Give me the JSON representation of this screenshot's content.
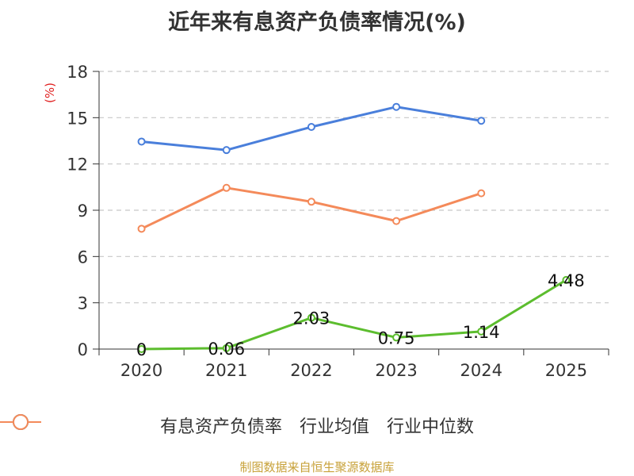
{
  "chart_data": {
    "type": "line",
    "title": "近年来有息资产负债率情况(%)",
    "ylabel": "(%)",
    "categories": [
      "2020",
      "2021",
      "2022",
      "2023",
      "2024",
      "2025"
    ],
    "yticks": [
      "0",
      "3",
      "6",
      "9",
      "12",
      "15",
      "18"
    ],
    "ylim": [
      0,
      18
    ],
    "grid": true,
    "legend_position": "bottom",
    "series": [
      {
        "name": "有息资产负债率",
        "color": "#5cbd2e",
        "values": [
          0,
          0.06,
          2.03,
          0.75,
          1.14,
          4.48
        ],
        "labels": [
          "0",
          "0.06",
          "2.03",
          "0.75",
          "1.14",
          "4.48"
        ]
      },
      {
        "name": "行业均值",
        "color": "#4a7fdb",
        "values": [
          13.45,
          12.9,
          14.4,
          15.7,
          14.8,
          null
        ]
      },
      {
        "name": "行业中位数",
        "color": "#f48a5a",
        "values": [
          7.8,
          10.45,
          9.55,
          8.3,
          10.1,
          null
        ]
      }
    ]
  },
  "source": "制图数据来自恒生聚源数据库"
}
